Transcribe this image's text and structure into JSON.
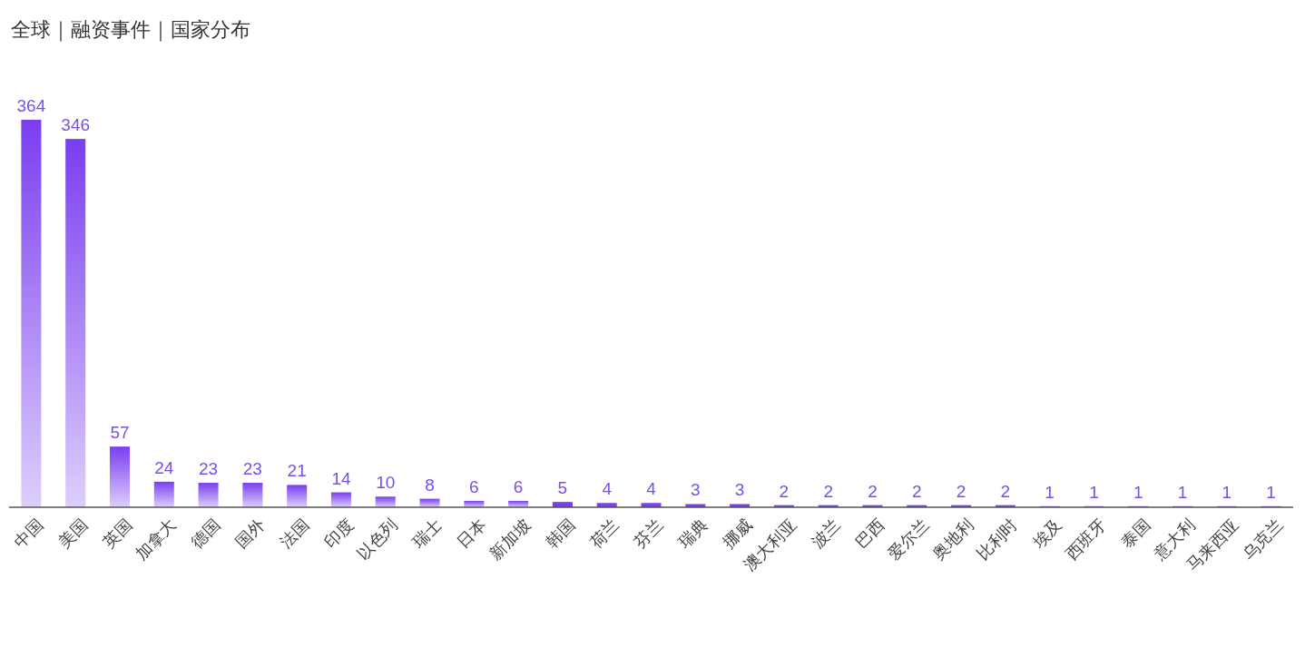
{
  "chart_data": {
    "type": "bar",
    "title": "全球｜融资事件｜国家分布",
    "categories": [
      "中国",
      "美国",
      "英国",
      "加拿大",
      "德国",
      "国外",
      "法国",
      "印度",
      "以色列",
      "瑞士",
      "日本",
      "新加坡",
      "韩国",
      "荷兰",
      "芬兰",
      "瑞典",
      "挪威",
      "澳大利亚",
      "波兰",
      "巴西",
      "爱尔兰",
      "奥地利",
      "比利时",
      "埃及",
      "西班牙",
      "泰国",
      "意大利",
      "马来西亚",
      "乌克兰"
    ],
    "values": [
      364,
      346,
      57,
      24,
      23,
      23,
      21,
      14,
      10,
      8,
      6,
      6,
      5,
      4,
      4,
      3,
      3,
      2,
      2,
      2,
      2,
      2,
      2,
      1,
      1,
      1,
      1,
      1,
      1
    ],
    "color": "#7a3ef0",
    "data_labels": true
  }
}
